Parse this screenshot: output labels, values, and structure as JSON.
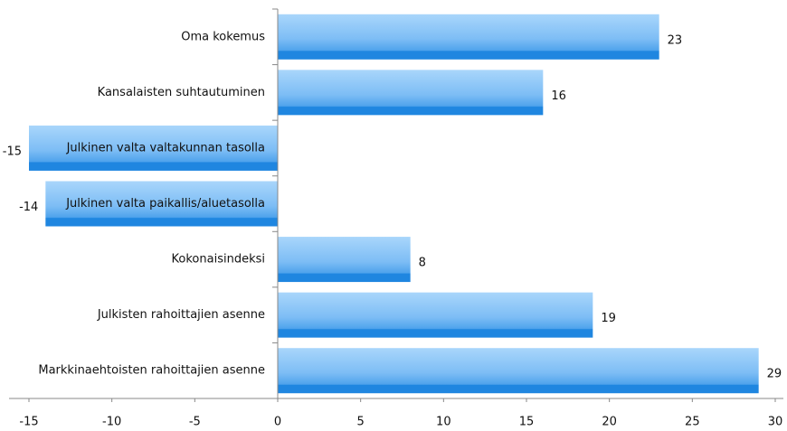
{
  "chart_data": {
    "type": "bar",
    "orientation": "horizontal",
    "categories": [
      "Oma kokemus",
      "Kansalaisten suhtautuminen",
      "Julkinen valta valtakunnan tasolla",
      "Julkinen valta paikallis/aluetasolla",
      "Kokonaisindeksi",
      "Julkisten rahoittajien asenne",
      "Markkinaehtoisten rahoittajien asenne"
    ],
    "values": [
      23,
      16,
      -15,
      -14,
      8,
      19,
      29
    ],
    "color": "#5aa8ee",
    "xlim": [
      -15,
      30
    ],
    "xticks": [
      -15,
      -10,
      -5,
      0,
      5,
      10,
      15,
      20,
      25,
      30
    ],
    "grid": false
  }
}
